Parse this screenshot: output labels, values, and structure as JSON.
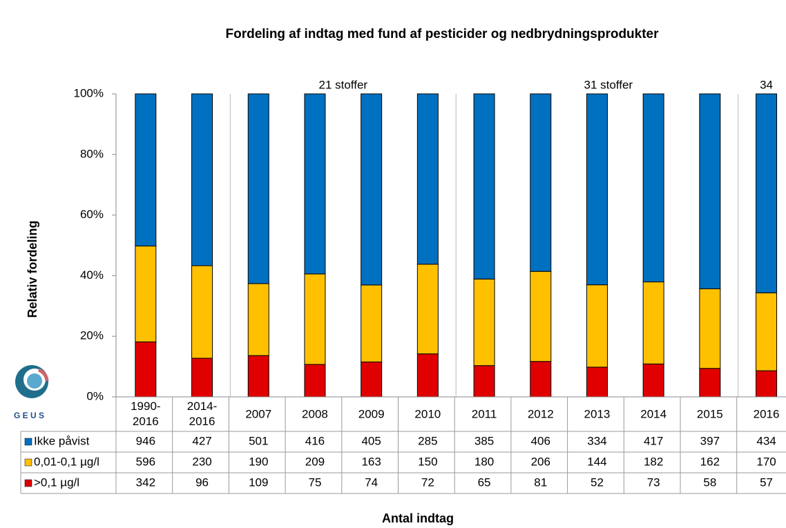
{
  "chart_data": {
    "type": "bar",
    "stacked": "percent",
    "title": "Fordeling af indtag med fund af pesticider og nedbrydningsprodukter",
    "y_label": "Relativ fordeling",
    "x_label": "Antal indtag",
    "annotations": [
      "21 stoffer",
      "31 stoffer",
      "34"
    ],
    "logo": "G E U S",
    "categories": [
      "1990-2016",
      "2014-2016",
      "2007",
      "2008",
      "2009",
      "2010",
      "2011",
      "2012",
      "2013",
      "2014",
      "2015",
      "2016"
    ],
    "series": [
      {
        "name": "Ikke påvist",
        "color": "#0070c0",
        "values": [
          946,
          427,
          501,
          416,
          405,
          285,
          385,
          406,
          334,
          417,
          397,
          434
        ]
      },
      {
        "name": "0,01-0,1 µg/l",
        "color": "#ffc000",
        "values": [
          596,
          230,
          190,
          209,
          163,
          150,
          180,
          206,
          144,
          182,
          162,
          170
        ]
      },
      {
        "name": ">0,1 µg/l",
        "color": "#e00000",
        "values": [
          342,
          96,
          109,
          75,
          74,
          72,
          65,
          81,
          52,
          73,
          58,
          57
        ]
      }
    ],
    "ylim": [
      0,
      100
    ],
    "yticks": [
      {
        "value": 0,
        "label": "0%"
      },
      {
        "value": 20,
        "label": "20%"
      },
      {
        "value": 40,
        "label": "40%"
      },
      {
        "value": 60,
        "label": "60%"
      },
      {
        "value": 80,
        "label": "80%"
      },
      {
        "value": 100,
        "label": "100%"
      }
    ]
  }
}
